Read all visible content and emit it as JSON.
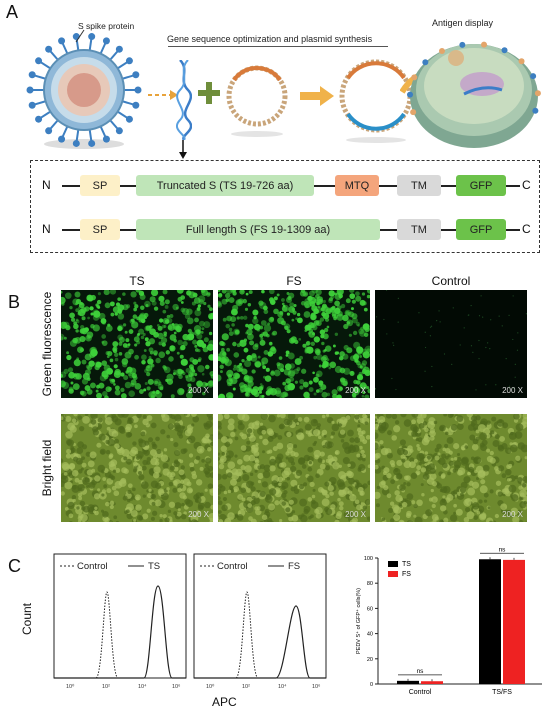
{
  "panel_a": {
    "letter": "A",
    "spike_label": "S spike protein",
    "process_label": "Gene sequence optimization and plasmid synthesis",
    "antigen_label": "Antigen display",
    "constructs": [
      {
        "n": "N",
        "sp": "SP",
        "s": "Truncated S  (TS 19-726 aa)",
        "mtq": "MTQ",
        "tm": "TM",
        "gfp": "GFP",
        "c": "C"
      },
      {
        "n": "N",
        "sp": "SP",
        "s": "Full length S  (FS 19-1309 aa)",
        "tm": "TM",
        "gfp": "GFP",
        "c": "C"
      }
    ],
    "colors": {
      "sp": "#fdf0c8",
      "s": "#bfe5b8",
      "mtq": "#f4a57c",
      "tm": "#d9d9d9",
      "gfp": "#6cc24a"
    }
  },
  "panel_b": {
    "letter": "B",
    "columns": [
      "TS",
      "FS",
      "Control"
    ],
    "rows": [
      "Green fluorescence",
      "Bright field"
    ],
    "magnification": "200 X"
  },
  "panel_c": {
    "letter": "C",
    "histograms": [
      {
        "legend_control": "Control",
        "legend_sample": "TS"
      },
      {
        "legend_control": "Control",
        "legend_sample": "FS"
      }
    ],
    "y_label": "Count",
    "x_label": "APC",
    "x_ticks": [
      "10⁰",
      "10²",
      "10⁴",
      "10⁶"
    ],
    "bar_chart": {
      "ylabel": "PEDV S⁺ of GFP⁺ cells(%)",
      "yticks": [
        "0",
        "20",
        "40",
        "60",
        "80",
        "100"
      ],
      "groups": [
        "Control",
        "TS/FS"
      ],
      "legend": [
        {
          "name": "TS",
          "color": "#000000"
        },
        {
          "name": "FS",
          "color": "#ee2222"
        }
      ],
      "sig": [
        "ns",
        "ns"
      ]
    }
  },
  "chart_data": {
    "type": "bar",
    "categories": [
      "Control",
      "TS/FS"
    ],
    "series": [
      {
        "name": "TS",
        "values": [
          2.5,
          99
        ]
      },
      {
        "name": "FS",
        "values": [
          2.2,
          98.5
        ]
      }
    ],
    "ylabel": "PEDV S⁺ of GFP⁺ cells(%)",
    "ylim": [
      0,
      100
    ]
  }
}
